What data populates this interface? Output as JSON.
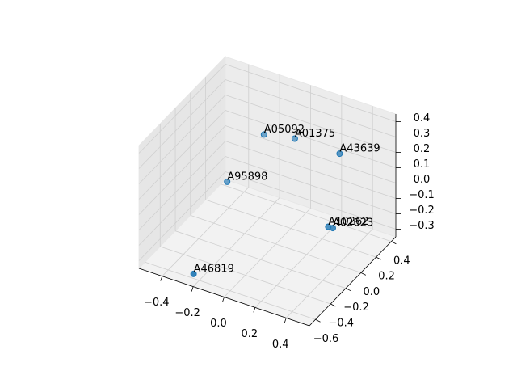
{
  "chart_data": {
    "type": "scatter",
    "labels": [
      "A05092",
      "A01375",
      "A43639",
      "A95898",
      "A10262",
      "A02623",
      "A46819"
    ],
    "x": [
      -0.11,
      0.03,
      0.29,
      -0.24,
      0.29,
      0.318,
      -0.2
    ],
    "y": [
      0.07,
      0.19,
      0.25,
      -0.15,
      0.1,
      0.103,
      -0.675
    ],
    "z": [
      0.29,
      0.25,
      0.21,
      0.05,
      -0.19,
      -0.19,
      -0.27
    ],
    "color": "#1f77b4",
    "xlim": [
      -0.55,
      0.55
    ],
    "ylim": [
      -0.68,
      0.46
    ],
    "zlim": [
      -0.35,
      0.45
    ],
    "xticks": [
      {
        "value": -0.4,
        "label": "−0.4"
      },
      {
        "value": -0.2,
        "label": "−0.2"
      },
      {
        "value": 0,
        "label": "0.0"
      },
      0.2,
      0.4
    ],
    "yticks": [
      {
        "value": -0.6,
        "label": "−0.6"
      },
      {
        "value": -0.4,
        "label": "−0.4"
      },
      {
        "value": -0.2,
        "label": "−0.2"
      },
      {
        "value": 0,
        "label": "0.0"
      },
      0.2,
      0.4
    ],
    "zticks": [
      {
        "value": -0.3,
        "label": "−0.3"
      },
      {
        "value": -0.2,
        "label": "−0.2"
      },
      {
        "value": -0.1,
        "label": "−0.1"
      },
      {
        "value": 0,
        "label": "0.0"
      },
      0.1,
      0.2,
      0.3,
      0.4
    ],
    "grid": true
  }
}
